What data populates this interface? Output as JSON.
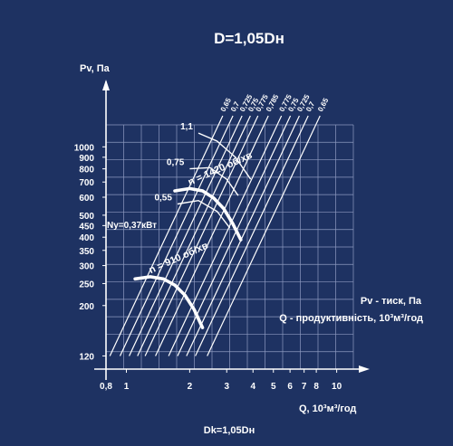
{
  "chart_data": {
    "type": "line",
    "title": "D=1,05Dн",
    "subtitle": "Dk=1,05Dн",
    "xlabel": "Q, 10³м³/год",
    "ylabel": "Pv, Па",
    "x_scale": "log",
    "y_scale": "log",
    "xlim": [
      0.8,
      12
    ],
    "ylim": [
      105,
      1250
    ],
    "grid": true,
    "x_ticks": [
      0.8,
      1,
      2,
      3,
      4,
      5,
      6,
      7,
      8,
      10
    ],
    "x_tick_labels": [
      "0,8",
      "1",
      "2",
      "3",
      "4",
      "5",
      "6",
      "7",
      "8",
      "10"
    ],
    "y_ticks": [
      120,
      200,
      250,
      300,
      350,
      400,
      450,
      500,
      600,
      700,
      800,
      900,
      1000
    ],
    "y_tick_labels": [
      "120",
      "200",
      "250",
      "300",
      "350",
      "400",
      "450",
      "500",
      "600",
      "700",
      "800",
      "900",
      "1000"
    ],
    "annotations": {
      "motor_power": "Ny=0,37кВт",
      "legend_line1": "Pv - тиск, Па",
      "legend_line2": "Q - продуктивність, 10³м³/год"
    },
    "series": [
      {
        "name": "n = 1420 об/хв",
        "x": [
          1.7,
          2.0,
          2.3,
          2.6,
          2.9,
          3.2,
          3.5
        ],
        "values": [
          640,
          655,
          640,
          595,
          535,
          460,
          390
        ]
      },
      {
        "name": "n = 910 об/хв",
        "x": [
          1.1,
          1.3,
          1.5,
          1.7,
          1.9,
          2.1,
          2.3
        ],
        "values": [
          262,
          268,
          262,
          246,
          222,
          192,
          160
        ]
      }
    ],
    "power_curves": [
      {
        "label": "1,1",
        "x": [
          2.2,
          2.7,
          3.3,
          3.9
        ],
        "values": [
          1150,
          1060,
          900,
          720
        ]
      },
      {
        "label": "0,75",
        "x": [
          2.0,
          2.5,
          3.0,
          3.4
        ],
        "values": [
          800,
          810,
          720,
          610
        ]
      },
      {
        "label": "0,55",
        "x": [
          1.75,
          2.2,
          2.7,
          3.1
        ],
        "values": [
          560,
          580,
          520,
          440
        ]
      }
    ],
    "efficiency_lines": [
      {
        "label": "0,65",
        "q": 2.55
      },
      {
        "label": "0,7",
        "q": 2.85
      },
      {
        "label": "0,725",
        "q": 3.15
      },
      {
        "label": "0,75",
        "q": 3.45
      },
      {
        "label": "0,775",
        "q": 3.75
      },
      {
        "label": "0,785",
        "q": 4.2
      },
      {
        "label": "0,775",
        "q": 4.85
      },
      {
        "label": "0,75",
        "q": 5.35
      },
      {
        "label": "0,725",
        "q": 5.9
      },
      {
        "label": "0,7",
        "q": 6.5
      },
      {
        "label": "0,65",
        "q": 7.4
      }
    ]
  }
}
